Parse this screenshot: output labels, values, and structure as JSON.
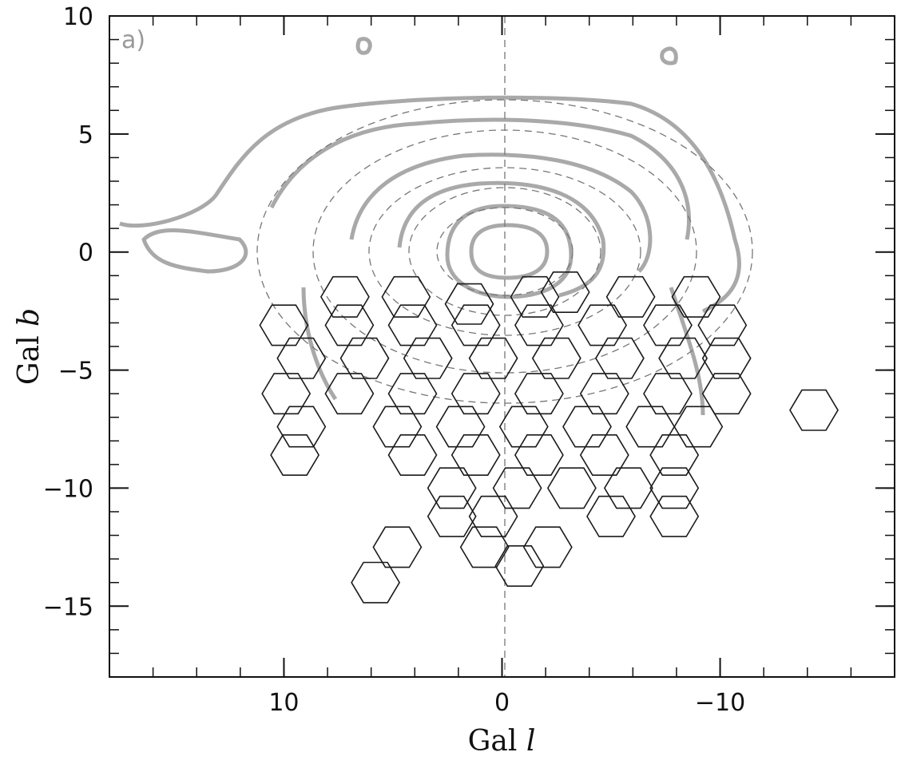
{
  "chart_data": {
    "type": "scatter",
    "panel_label": "a)",
    "x_label": [
      "Gal",
      "l"
    ],
    "y_label": [
      "Gal",
      "b"
    ],
    "xlim": [
      18,
      -18
    ],
    "ylim": [
      -18,
      10
    ],
    "xticks": [
      10,
      0,
      {
        "value": -10,
        "label": "−10"
      }
    ],
    "yticks": [
      10,
      5,
      0,
      {
        "value": -5,
        "label": "−5"
      },
      {
        "value": -10,
        "label": "−10"
      },
      {
        "value": -15,
        "label": "−15"
      }
    ],
    "xminor": 2,
    "yminor": 1,
    "color": "#1a1a1a",
    "marker": "hexagon",
    "x": [
      7.2,
      4.4,
      1.5,
      -1.5,
      -2.9,
      -5.9,
      -8.9,
      10.0,
      7.0,
      4.1,
      1.2,
      -1.7,
      -4.6,
      -7.6,
      -10.1,
      9.2,
      6.3,
      3.4,
      0.4,
      -2.5,
      -5.4,
      -8.3,
      -10.3,
      9.9,
      7.0,
      4.1,
      1.2,
      -1.7,
      -4.7,
      -7.6,
      -10.3,
      9.2,
      4.8,
      1.9,
      -1.0,
      -3.9,
      -6.8,
      -9.0,
      9.5,
      4.1,
      1.2,
      -1.7,
      -4.7,
      -7.9,
      2.3,
      -0.7,
      -3.2,
      -5.8,
      -7.9,
      2.3,
      0.4,
      -5.0,
      -7.9,
      0.8,
      -2.1,
      -0.8,
      4.8,
      5.8,
      -14.3
    ],
    "y": [
      -1.9,
      -1.9,
      -2.2,
      -1.9,
      -1.7,
      -1.9,
      -1.9,
      -3.1,
      -3.1,
      -3.1,
      -3.1,
      -3.1,
      -3.1,
      -3.1,
      -3.1,
      -4.5,
      -4.5,
      -4.5,
      -4.5,
      -4.5,
      -4.5,
      -4.5,
      -4.5,
      -6.0,
      -6.0,
      -6.0,
      -6.0,
      -6.0,
      -6.0,
      -6.0,
      -6.0,
      -7.4,
      -7.4,
      -7.4,
      -7.4,
      -7.4,
      -7.4,
      -7.4,
      -8.6,
      -8.6,
      -8.6,
      -8.6,
      -8.6,
      -8.6,
      -10.0,
      -10.0,
      -10.0,
      -10.0,
      -10.0,
      -11.2,
      -11.2,
      -11.2,
      -11.2,
      -12.5,
      -12.5,
      -13.3,
      -12.5,
      -14.0,
      -6.7
    ]
  }
}
